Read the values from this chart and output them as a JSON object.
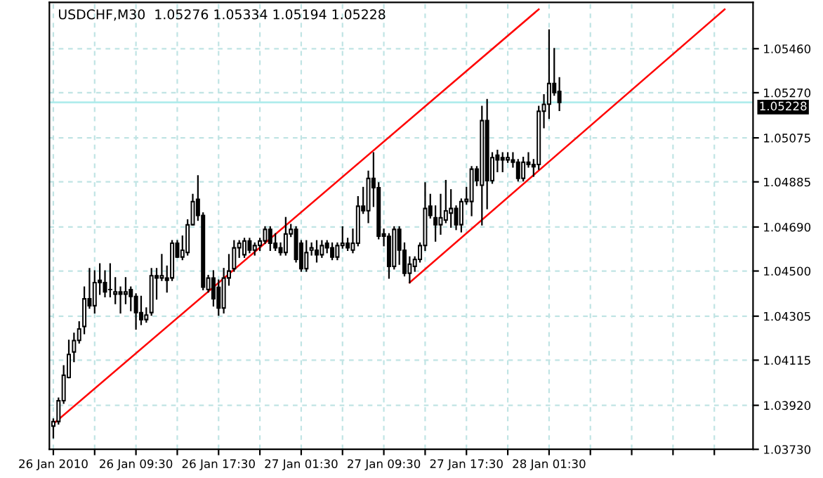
{
  "chart_data": {
    "type": "candlestick",
    "title": "USDCHF,M30  1.05276 1.05334 1.05194 1.05228",
    "x": [
      "2010-01-26T01:30",
      "2010-01-26T02:00",
      "2010-01-26T02:30",
      "2010-01-26T03:00",
      "2010-01-26T03:30",
      "2010-01-26T04:00",
      "2010-01-26T04:30",
      "2010-01-26T05:00",
      "2010-01-26T05:30",
      "2010-01-26T06:00",
      "2010-01-26T06:30",
      "2010-01-26T07:00",
      "2010-01-26T07:30",
      "2010-01-26T08:00",
      "2010-01-26T08:30",
      "2010-01-26T09:00",
      "2010-01-26T09:30",
      "2010-01-26T10:00",
      "2010-01-26T10:30",
      "2010-01-26T11:00",
      "2010-01-26T11:30",
      "2010-01-26T12:00",
      "2010-01-26T12:30",
      "2010-01-26T13:00",
      "2010-01-26T13:30",
      "2010-01-26T14:00",
      "2010-01-26T14:30",
      "2010-01-26T15:00",
      "2010-01-26T15:30",
      "2010-01-26T16:00",
      "2010-01-26T16:30",
      "2010-01-26T17:00",
      "2010-01-26T17:30",
      "2010-01-26T18:00",
      "2010-01-26T18:30",
      "2010-01-26T19:00",
      "2010-01-26T19:30",
      "2010-01-26T20:00",
      "2010-01-26T20:30",
      "2010-01-26T21:00",
      "2010-01-26T21:30",
      "2010-01-26T22:00",
      "2010-01-26T22:30",
      "2010-01-26T23:00",
      "2010-01-26T23:30",
      "2010-01-27T00:00",
      "2010-01-27T00:30",
      "2010-01-27T01:00",
      "2010-01-27T01:30",
      "2010-01-27T02:00",
      "2010-01-27T02:30",
      "2010-01-27T03:00",
      "2010-01-27T03:30",
      "2010-01-27T04:00",
      "2010-01-27T04:30",
      "2010-01-27T05:00",
      "2010-01-27T05:30",
      "2010-01-27T06:00",
      "2010-01-27T06:30",
      "2010-01-27T07:00",
      "2010-01-27T07:30",
      "2010-01-27T08:00",
      "2010-01-27T08:30",
      "2010-01-27T09:00",
      "2010-01-27T09:30",
      "2010-01-27T10:00",
      "2010-01-27T10:30",
      "2010-01-27T11:00",
      "2010-01-27T11:30",
      "2010-01-27T12:00",
      "2010-01-27T12:30",
      "2010-01-27T13:00",
      "2010-01-27T13:30",
      "2010-01-27T14:00",
      "2010-01-27T14:30",
      "2010-01-27T15:00",
      "2010-01-27T15:30",
      "2010-01-27T16:00",
      "2010-01-27T16:30",
      "2010-01-27T17:00",
      "2010-01-27T17:30",
      "2010-01-27T18:00",
      "2010-01-27T18:30",
      "2010-01-27T19:00",
      "2010-01-27T19:30",
      "2010-01-27T20:00",
      "2010-01-27T20:30",
      "2010-01-27T21:00",
      "2010-01-27T21:30",
      "2010-01-27T22:00",
      "2010-01-27T22:30",
      "2010-01-27T23:00",
      "2010-01-27T23:30",
      "2010-01-28T00:00",
      "2010-01-28T00:30",
      "2010-01-28T01:00",
      "2010-01-28T01:30",
      "2010-01-28T02:00",
      "2010-01-28T02:30"
    ],
    "ohlc": [
      [
        1.0383,
        1.0386,
        1.0378,
        1.0385
      ],
      [
        1.0385,
        1.0395,
        1.0384,
        1.0394
      ],
      [
        1.0394,
        1.0409,
        1.0393,
        1.0405
      ],
      [
        1.0404,
        1.042,
        1.0404,
        1.0414
      ],
      [
        1.0415,
        1.0423,
        1.0411,
        1.042
      ],
      [
        1.042,
        1.0428,
        1.0419,
        1.0425
      ],
      [
        1.0426,
        1.0443,
        1.0423,
        1.0438
      ],
      [
        1.0438,
        1.0451,
        1.0434,
        1.0435
      ],
      [
        1.0435,
        1.045,
        1.0432,
        1.0445
      ],
      [
        1.0446,
        1.0453,
        1.044,
        1.0445
      ],
      [
        1.0445,
        1.045,
        1.0439,
        1.0441
      ],
      [
        1.0442,
        1.0453,
        1.0439,
        1.0442
      ],
      [
        1.044,
        1.0447,
        1.0436,
        1.0441
      ],
      [
        1.0441,
        1.0443,
        1.0432,
        1.044
      ],
      [
        1.044,
        1.0447,
        1.0436,
        1.0441
      ],
      [
        1.0442,
        1.0443,
        1.0433,
        1.0439
      ],
      [
        1.0439,
        1.044,
        1.0425,
        1.0432
      ],
      [
        1.0432,
        1.0439,
        1.0427,
        1.0429
      ],
      [
        1.0429,
        1.0434,
        1.0428,
        1.0431
      ],
      [
        1.0432,
        1.0451,
        1.0431,
        1.0448
      ],
      [
        1.0448,
        1.0451,
        1.0438,
        1.0447
      ],
      [
        1.0447,
        1.0457,
        1.0446,
        1.0448
      ],
      [
        1.0447,
        1.0452,
        1.0441,
        1.0446
      ],
      [
        1.0447,
        1.0463,
        1.0446,
        1.0462
      ],
      [
        1.0462,
        1.0463,
        1.0456,
        1.0456
      ],
      [
        1.0456,
        1.0465,
        1.0455,
        1.0459
      ],
      [
        1.0458,
        1.0472,
        1.0457,
        1.047
      ],
      [
        1.047,
        1.0483,
        1.047,
        1.048
      ],
      [
        1.0481,
        1.0491,
        1.0472,
        1.0474
      ],
      [
        1.0474,
        1.0475,
        1.0442,
        1.0443
      ],
      [
        1.0442,
        1.0448,
        1.0441,
        1.0447
      ],
      [
        1.0447,
        1.045,
        1.0435,
        1.0438
      ],
      [
        1.0443,
        1.0446,
        1.0431,
        1.0434
      ],
      [
        1.0434,
        1.0451,
        1.0432,
        1.0447
      ],
      [
        1.0447,
        1.0457,
        1.0444,
        1.045
      ],
      [
        1.0451,
        1.0463,
        1.045,
        1.046
      ],
      [
        1.046,
        1.0463,
        1.0456,
        1.0462
      ],
      [
        1.0457,
        1.0464,
        1.0456,
        1.0463
      ],
      [
        1.0463,
        1.0464,
        1.0458,
        1.0459
      ],
      [
        1.0459,
        1.0462,
        1.0457,
        1.0461
      ],
      [
        1.0461,
        1.0464,
        1.0459,
        1.0463
      ],
      [
        1.0463,
        1.0469,
        1.0462,
        1.0468
      ],
      [
        1.0468,
        1.0469,
        1.0459,
        1.0462
      ],
      [
        1.0462,
        1.0466,
        1.0459,
        1.046
      ],
      [
        1.046,
        1.0462,
        1.0457,
        1.0458
      ],
      [
        1.0458,
        1.0473,
        1.0457,
        1.0466
      ],
      [
        1.0466,
        1.047,
        1.0465,
        1.0468
      ],
      [
        1.0468,
        1.0469,
        1.0454,
        1.0455
      ],
      [
        1.0462,
        1.0463,
        1.045,
        1.0451
      ],
      [
        1.0451,
        1.0463,
        1.045,
        1.0458
      ],
      [
        1.0459,
        1.0462,
        1.0457,
        1.046
      ],
      [
        1.0459,
        1.0463,
        1.0454,
        1.0457
      ],
      [
        1.0457,
        1.0463,
        1.0456,
        1.0461
      ],
      [
        1.0462,
        1.0463,
        1.0458,
        1.046
      ],
      [
        1.046,
        1.0462,
        1.0455,
        1.0456
      ],
      [
        1.0456,
        1.0462,
        1.0455,
        1.0461
      ],
      [
        1.0461,
        1.0469,
        1.046,
        1.0462
      ],
      [
        1.0462,
        1.0464,
        1.0459,
        1.046
      ],
      [
        1.0459,
        1.0468,
        1.0458,
        1.0462
      ],
      [
        1.0462,
        1.0482,
        1.0461,
        1.0478
      ],
      [
        1.0478,
        1.0486,
        1.0475,
        1.0476
      ],
      [
        1.0476,
        1.0493,
        1.0471,
        1.049
      ],
      [
        1.049,
        1.0501,
        1.0478,
        1.0486
      ],
      [
        1.0486,
        1.0488,
        1.0464,
        1.0465
      ],
      [
        1.0466,
        1.0468,
        1.0461,
        1.0465
      ],
      [
        1.0465,
        1.0466,
        1.0447,
        1.0452
      ],
      [
        1.0452,
        1.0469,
        1.0451,
        1.0468
      ],
      [
        1.0468,
        1.0469,
        1.0453,
        1.0459
      ],
      [
        1.0459,
        1.0462,
        1.0448,
        1.0449
      ],
      [
        1.0449,
        1.0456,
        1.0445,
        1.0453
      ],
      [
        1.0452,
        1.0456,
        1.045,
        1.0455
      ],
      [
        1.0455,
        1.0462,
        1.0454,
        1.0461
      ],
      [
        1.0461,
        1.0488,
        1.0459,
        1.0477
      ],
      [
        1.0478,
        1.0483,
        1.0473,
        1.0474
      ],
      [
        1.0473,
        1.0478,
        1.0463,
        1.047
      ],
      [
        1.047,
        1.0483,
        1.0466,
        1.0473
      ],
      [
        1.0472,
        1.0489,
        1.0471,
        1.0476
      ],
      [
        1.0475,
        1.0485,
        1.0469,
        1.0477
      ],
      [
        1.0477,
        1.0478,
        1.0468,
        1.047
      ],
      [
        1.047,
        1.0481,
        1.0467,
        1.048
      ],
      [
        1.048,
        1.0486,
        1.0479,
        1.0481
      ],
      [
        1.048,
        1.0495,
        1.0474,
        1.0494
      ],
      [
        1.0494,
        1.0495,
        1.0487,
        1.0489
      ],
      [
        1.0487,
        1.0521,
        1.047,
        1.0515
      ],
      [
        1.0515,
        1.0524,
        1.0477,
        1.0489
      ],
      [
        1.0489,
        1.0501,
        1.0488,
        1.0499
      ],
      [
        1.05,
        1.0502,
        1.0493,
        1.0498
      ],
      [
        1.0499,
        1.0501,
        1.0493,
        1.0498
      ],
      [
        1.0498,
        1.0501,
        1.0497,
        1.0499
      ],
      [
        1.0498,
        1.0501,
        1.0495,
        1.0497
      ],
      [
        1.0497,
        1.0498,
        1.0489,
        1.049
      ],
      [
        1.049,
        1.0499,
        1.0489,
        1.0497
      ],
      [
        1.0497,
        1.0501,
        1.0495,
        1.0496
      ],
      [
        1.0496,
        1.0498,
        1.0491,
        1.0495
      ],
      [
        1.0496,
        1.0521,
        1.0494,
        1.0519
      ],
      [
        1.0519,
        1.0526,
        1.0512,
        1.0522
      ],
      [
        1.0522,
        1.0554,
        1.0516,
        1.0531
      ],
      [
        1.0531,
        1.0546,
        1.0526,
        1.0527
      ],
      [
        1.05276,
        1.05334,
        1.05194,
        1.05228
      ]
    ],
    "series": [
      {
        "type": "line",
        "color": "#ff0000",
        "x": [
          "2010-01-26T01:30",
          "2010-01-28T00:30"
        ],
        "values": [
          1.0384,
          1.0563
        ]
      },
      {
        "type": "line",
        "color": "#ff0000",
        "x": [
          "2010-01-27T12:00",
          "2010-01-28T18:30"
        ],
        "values": [
          1.0445,
          1.0563
        ]
      }
    ],
    "xlim": [
      "2010-01-26T01:07",
      "2010-01-28T21:15"
    ],
    "xticks": [
      {
        "value": "2010-01-26T01:30",
        "label": "26 Jan 2010"
      },
      {
        "value": "2010-01-26T05:30",
        "label": null
      },
      {
        "value": "2010-01-26T09:30",
        "label": "26 Jan 09:30"
      },
      {
        "value": "2010-01-26T13:30",
        "label": null
      },
      {
        "value": "2010-01-26T17:30",
        "label": "26 Jan 17:30"
      },
      {
        "value": "2010-01-26T21:30",
        "label": null
      },
      {
        "value": "2010-01-27T01:30",
        "label": "27 Jan 01:30"
      },
      {
        "value": "2010-01-27T05:30",
        "label": null
      },
      {
        "value": "2010-01-27T09:30",
        "label": "27 Jan 09:30"
      },
      {
        "value": "2010-01-27T13:30",
        "label": null
      },
      {
        "value": "2010-01-27T17:30",
        "label": "27 Jan 17:30"
      },
      {
        "value": "2010-01-27T21:30",
        "label": null
      },
      {
        "value": "2010-01-28T01:30",
        "label": "28 Jan 01:30"
      },
      {
        "value": "2010-01-28T05:30",
        "label": null
      },
      {
        "value": "2010-01-28T09:30",
        "label": null
      },
      {
        "value": "2010-01-28T13:30",
        "label": null
      },
      {
        "value": "2010-01-28T17:30",
        "label": null
      }
    ],
    "ylim": [
      1.0373,
      1.0566
    ],
    "yticks": [
      {
        "value": 1.0546,
        "label": "1.05460"
      },
      {
        "value": 1.0527,
        "label": "1.05270"
      },
      {
        "value": 1.05075,
        "label": "1.05075"
      },
      {
        "value": 1.04885,
        "label": "1.04885"
      },
      {
        "value": 1.0469,
        "label": "1.04690"
      },
      {
        "value": 1.045,
        "label": "1.04500"
      },
      {
        "value": 1.04305,
        "label": "1.04305"
      },
      {
        "value": 1.04115,
        "label": "1.04115"
      },
      {
        "value": 1.0392,
        "label": "1.03920"
      },
      {
        "value": 1.0373,
        "label": "1.03730"
      }
    ],
    "ref_lines": [
      {
        "axis": "y",
        "value": 1.05228,
        "label": "1.05228",
        "color": "#b0ecec"
      }
    ],
    "grid": true,
    "line_style": "solid"
  }
}
